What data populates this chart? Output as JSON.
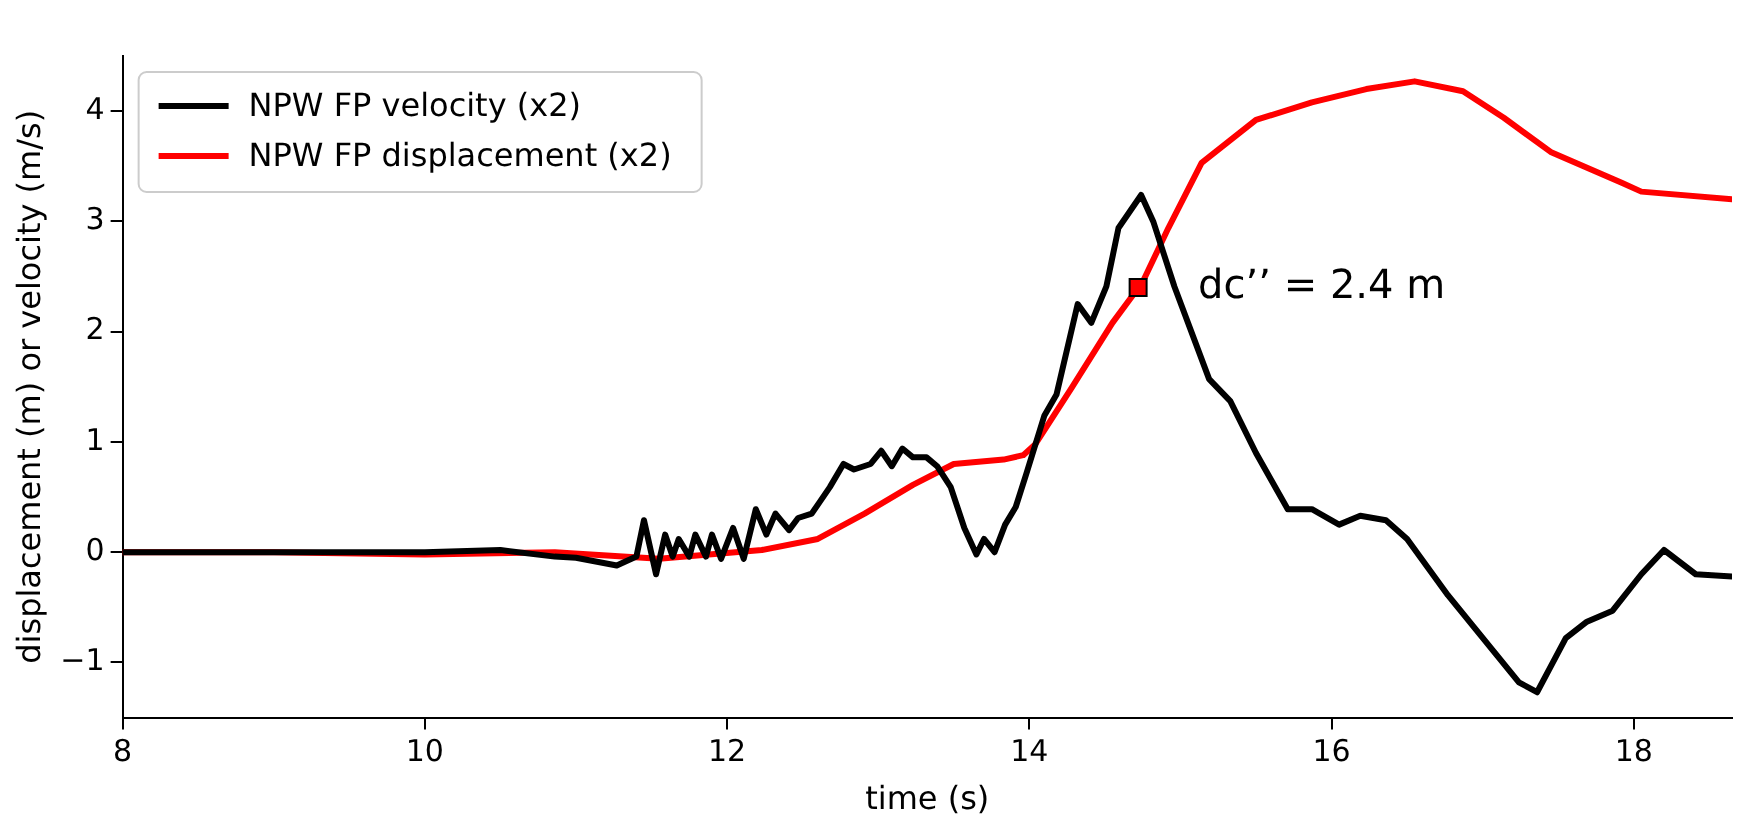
{
  "chart_data": {
    "type": "line",
    "xlabel": "time (s)",
    "ylabel": "displacement (m) or velocity (m/s)",
    "xlim": [
      8,
      18.65
    ],
    "xticks": [
      8,
      10,
      12,
      14,
      16,
      18
    ],
    "ylim": [
      -1.5,
      4.5
    ],
    "yticks": [
      -1,
      0,
      1,
      2,
      3,
      4
    ],
    "grid": false,
    "legend": "top left",
    "line_style": "solid",
    "series": [
      {
        "name": "NPW FP velocity (x2)",
        "color": "#000000",
        "marker": "none",
        "x": [
          8,
          9,
          10,
          10.5,
          10.86,
          11.0,
          11.27,
          11.4,
          11.45,
          11.53,
          11.59,
          11.64,
          11.68,
          11.75,
          11.79,
          11.86,
          11.9,
          11.96,
          12.04,
          12.11,
          12.19,
          12.26,
          12.32,
          12.41,
          12.47,
          12.56,
          12.61,
          12.68,
          12.77,
          12.84,
          12.95,
          13.02,
          13.09,
          13.16,
          13.23,
          13.32,
          13.39,
          13.48,
          13.57,
          13.65,
          13.7,
          13.77,
          13.84,
          13.91,
          13.98,
          14.1,
          14.18,
          14.32,
          14.41,
          14.51,
          14.59,
          14.74,
          14.82,
          14.96,
          15.19,
          15.33,
          15.5,
          15.71,
          15.87,
          16.05,
          16.19,
          16.36,
          16.5,
          16.77,
          17.05,
          17.24,
          17.36,
          17.55,
          17.69,
          17.86,
          18.05,
          18.2,
          18.41,
          18.65
        ],
        "values": [
          0,
          0,
          0,
          0.02,
          -0.04,
          -0.05,
          -0.12,
          -0.04,
          0.29,
          -0.2,
          0.16,
          -0.04,
          0.12,
          -0.04,
          0.16,
          -0.04,
          0.16,
          -0.06,
          0.22,
          -0.06,
          0.39,
          0.16,
          0.35,
          0.2,
          0.31,
          0.35,
          0.45,
          0.59,
          0.8,
          0.75,
          0.8,
          0.92,
          0.78,
          0.94,
          0.86,
          0.86,
          0.78,
          0.59,
          0.22,
          -0.02,
          0.12,
          0,
          0.25,
          0.41,
          0.71,
          1.24,
          1.43,
          2.25,
          2.08,
          2.41,
          2.94,
          3.24,
          3.0,
          2.41,
          1.57,
          1.37,
          0.9,
          0.39,
          0.39,
          0.25,
          0.33,
          0.29,
          0.12,
          -0.39,
          -0.86,
          -1.18,
          -1.27,
          -0.78,
          -0.63,
          -0.53,
          -0.2,
          0.02,
          -0.2,
          -0.22
        ]
      },
      {
        "name": "NPW FP displacement (x2)",
        "color": "#ff0000",
        "marker": "none",
        "x": [
          8,
          9,
          10,
          10.86,
          11.55,
          12.23,
          12.6,
          12.91,
          13.23,
          13.5,
          13.83,
          13.96,
          14.04,
          14.28,
          14.55,
          14.75,
          14.92,
          15.14,
          15.5,
          15.87,
          16.23,
          16.55,
          16.87,
          17.14,
          17.45,
          17.92,
          18.05,
          18.65
        ],
        "values": [
          0,
          0,
          -0.02,
          0,
          -0.06,
          0.02,
          0.12,
          0.35,
          0.61,
          0.8,
          0.84,
          0.88,
          0.98,
          1.49,
          2.08,
          2.45,
          2.94,
          3.53,
          3.92,
          4.08,
          4.2,
          4.27,
          4.18,
          3.94,
          3.63,
          3.35,
          3.27,
          3.2
        ]
      },
      {
        "type": "scatter",
        "color": "#ff0000",
        "marker": "square",
        "x": [
          14.72
        ],
        "values": [
          2.4
        ]
      }
    ],
    "annotations": [
      {
        "text": "dc’’ = 2.4 m",
        "x": 14.72,
        "y": 2.4
      }
    ]
  }
}
